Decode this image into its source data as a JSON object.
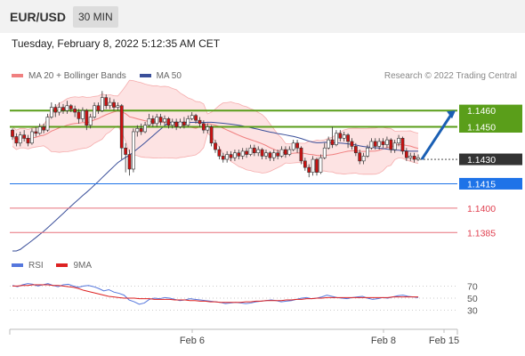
{
  "header": {
    "pair": "EUR/USD",
    "timeframe": "30 MIN"
  },
  "timestamp": "Tuesday, February 8, 2022 5:12:35 AM CET",
  "legend": {
    "bollinger": "MA 20 + Bollinger Bands",
    "ma50": "MA 50",
    "credit": "Research © 2022 Trading Central"
  },
  "rsi_legend": {
    "rsi": "RSI",
    "ma": "9MA"
  },
  "colors": {
    "up": "#ffffff",
    "down": "#cc1111",
    "bollinger": "#f08080",
    "bollinger_fill": "#fde3e3",
    "ma50": "#3a4f9a",
    "resistance": "#5a9e1a",
    "support_blue": "#1e73e8",
    "support_red": "#e8707a",
    "current": "#333333",
    "rsi": "#5577dd",
    "rsi_ma": "#dd2222",
    "arrow": "#1a5fb4"
  },
  "chart_data": [
    {
      "type": "candlestick",
      "title": "",
      "x_ticks": [
        "Feb 6",
        "Feb 8",
        "Feb 15"
      ],
      "levels": [
        {
          "label": "1.1460",
          "value": 1.146,
          "kind": "resistance"
        },
        {
          "label": "1.1450",
          "value": 1.145,
          "kind": "resistance"
        },
        {
          "label": "1.1430",
          "value": 1.143,
          "kind": "current"
        },
        {
          "label": "1.1415",
          "value": 1.1415,
          "kind": "support"
        },
        {
          "label": "1.1400",
          "value": 1.14,
          "kind": "support_minor"
        },
        {
          "label": "1.1385",
          "value": 1.1385,
          "kind": "support_minor"
        }
      ],
      "forecast_arrow": {
        "from": 1.143,
        "to": 1.146
      },
      "candles": [
        [
          1.1448,
          1.1444,
          1.1449,
          1.1442
        ],
        [
          1.1444,
          1.144,
          1.1446,
          1.1438
        ],
        [
          1.144,
          1.1445,
          1.1447,
          1.1438
        ],
        [
          1.1445,
          1.1443,
          1.1448,
          1.1441
        ],
        [
          1.1443,
          1.144,
          1.1445,
          1.1438
        ],
        [
          1.144,
          1.1447,
          1.1449,
          1.1439
        ],
        [
          1.1447,
          1.1446,
          1.145,
          1.1444
        ],
        [
          1.1446,
          1.145,
          1.1452,
          1.1445
        ],
        [
          1.145,
          1.1448,
          1.1452,
          1.1446
        ],
        [
          1.1448,
          1.1456,
          1.1458,
          1.1447
        ],
        [
          1.1456,
          1.1462,
          1.1465,
          1.1455
        ],
        [
          1.1462,
          1.1459,
          1.1464,
          1.1456
        ],
        [
          1.1459,
          1.1462,
          1.1465,
          1.1457
        ],
        [
          1.1462,
          1.146,
          1.1464,
          1.1458
        ],
        [
          1.146,
          1.1463,
          1.1466,
          1.1458
        ],
        [
          1.1463,
          1.1461,
          1.1464,
          1.1459
        ],
        [
          1.1461,
          1.1459,
          1.1463,
          1.1456
        ],
        [
          1.1459,
          1.1455,
          1.1461,
          1.1452
        ],
        [
          1.1455,
          1.146,
          1.1462,
          1.1453
        ],
        [
          1.146,
          1.1451,
          1.1461,
          1.1448
        ],
        [
          1.1451,
          1.1456,
          1.1458,
          1.1449
        ],
        [
          1.1456,
          1.1463,
          1.1465,
          1.1455
        ],
        [
          1.1463,
          1.146,
          1.1465,
          1.1458
        ],
        [
          1.146,
          1.1468,
          1.1472,
          1.1459
        ],
        [
          1.1468,
          1.1463,
          1.147,
          1.1461
        ],
        [
          1.1463,
          1.1465,
          1.1468,
          1.1461
        ],
        [
          1.1465,
          1.1462,
          1.1467,
          1.146
        ],
        [
          1.1462,
          1.1463,
          1.1465,
          1.146
        ],
        [
          1.1463,
          1.1437,
          1.1464,
          1.143
        ],
        [
          1.1437,
          1.1433,
          1.144,
          1.1422
        ],
        [
          1.1433,
          1.1424,
          1.1436,
          1.142
        ],
        [
          1.1424,
          1.1447,
          1.1449,
          1.1422
        ],
        [
          1.1447,
          1.1449,
          1.1451,
          1.1444
        ],
        [
          1.1449,
          1.1447,
          1.1452,
          1.1445
        ],
        [
          1.1447,
          1.1451,
          1.1453,
          1.1446
        ],
        [
          1.1451,
          1.1455,
          1.1458,
          1.145
        ],
        [
          1.1455,
          1.1452,
          1.1457,
          1.145
        ],
        [
          1.1452,
          1.1456,
          1.1458,
          1.145
        ],
        [
          1.1456,
          1.1453,
          1.1458,
          1.1451
        ],
        [
          1.1453,
          1.1455,
          1.1457,
          1.1451
        ],
        [
          1.1455,
          1.1451,
          1.1456,
          1.1449
        ],
        [
          1.1451,
          1.1453,
          1.1455,
          1.1449
        ],
        [
          1.1453,
          1.145,
          1.1455,
          1.1448
        ],
        [
          1.145,
          1.1453,
          1.1455,
          1.1449
        ],
        [
          1.1453,
          1.1451,
          1.1456,
          1.1449
        ],
        [
          1.1451,
          1.1455,
          1.1457,
          1.145
        ],
        [
          1.1455,
          1.1457,
          1.1459,
          1.1454
        ],
        [
          1.1457,
          1.1454,
          1.1458,
          1.1452
        ],
        [
          1.1454,
          1.1452,
          1.1456,
          1.145
        ],
        [
          1.1452,
          1.1448,
          1.1454,
          1.1446
        ],
        [
          1.1448,
          1.145,
          1.1452,
          1.1446
        ],
        [
          1.145,
          1.144,
          1.1451,
          1.1438
        ],
        [
          1.144,
          1.1436,
          1.1442,
          1.1434
        ],
        [
          1.1436,
          1.1432,
          1.1438,
          1.143
        ],
        [
          1.1432,
          1.143,
          1.1434,
          1.1428
        ],
        [
          1.143,
          1.1433,
          1.1435,
          1.1428
        ],
        [
          1.1433,
          1.1431,
          1.1435,
          1.1429
        ],
        [
          1.1431,
          1.1434,
          1.1436,
          1.1429
        ],
        [
          1.1434,
          1.1432,
          1.1436,
          1.143
        ],
        [
          1.1432,
          1.1435,
          1.1437,
          1.143
        ],
        [
          1.1435,
          1.1433,
          1.1437,
          1.1431
        ],
        [
          1.1433,
          1.1437,
          1.1439,
          1.1432
        ],
        [
          1.1437,
          1.1434,
          1.1439,
          1.1432
        ],
        [
          1.1434,
          1.1436,
          1.1438,
          1.1432
        ],
        [
          1.1436,
          1.1432,
          1.1437,
          1.143
        ],
        [
          1.1432,
          1.1434,
          1.1436,
          1.143
        ],
        [
          1.1434,
          1.1431,
          1.1435,
          1.1429
        ],
        [
          1.1431,
          1.1434,
          1.1436,
          1.1429
        ],
        [
          1.1434,
          1.1432,
          1.1436,
          1.143
        ],
        [
          1.1432,
          1.1436,
          1.1438,
          1.1431
        ],
        [
          1.1436,
          1.1433,
          1.1438,
          1.1431
        ],
        [
          1.1433,
          1.1436,
          1.1438,
          1.1432
        ],
        [
          1.1436,
          1.144,
          1.1442,
          1.1435
        ],
        [
          1.144,
          1.1437,
          1.1442,
          1.1434
        ],
        [
          1.1437,
          1.1429,
          1.1438,
          1.1427
        ],
        [
          1.1429,
          1.1425,
          1.1431,
          1.1423
        ],
        [
          1.1425,
          1.1422,
          1.1427,
          1.1419
        ],
        [
          1.1422,
          1.143,
          1.1432,
          1.142
        ],
        [
          1.143,
          1.1422,
          1.1431,
          1.142
        ],
        [
          1.1422,
          1.1431,
          1.1433,
          1.1421
        ],
        [
          1.1431,
          1.1437,
          1.144,
          1.143
        ],
        [
          1.1437,
          1.1442,
          1.1444,
          1.1436
        ],
        [
          1.1442,
          1.1439,
          1.145,
          1.1437
        ],
        [
          1.1439,
          1.1446,
          1.1448,
          1.1438
        ],
        [
          1.1446,
          1.1443,
          1.1448,
          1.1441
        ],
        [
          1.1443,
          1.1445,
          1.1447,
          1.1441
        ],
        [
          1.1445,
          1.1441,
          1.1446,
          1.1437
        ],
        [
          1.1441,
          1.1438,
          1.1443,
          1.1436
        ],
        [
          1.1438,
          1.1434,
          1.144,
          1.1432
        ],
        [
          1.1434,
          1.1429,
          1.1436,
          1.1427
        ],
        [
          1.1429,
          1.1432,
          1.1434,
          1.1427
        ],
        [
          1.1432,
          1.1437,
          1.1439,
          1.1431
        ],
        [
          1.1437,
          1.1441,
          1.1443,
          1.1436
        ],
        [
          1.1441,
          1.1438,
          1.1443,
          1.1436
        ],
        [
          1.1438,
          1.1441,
          1.1443,
          1.1436
        ],
        [
          1.1441,
          1.1439,
          1.1443,
          1.1437
        ],
        [
          1.1439,
          1.1442,
          1.1444,
          1.1437
        ],
        [
          1.1442,
          1.1436,
          1.1443,
          1.1434
        ],
        [
          1.1436,
          1.144,
          1.1442,
          1.1434
        ],
        [
          1.144,
          1.1443,
          1.1445,
          1.1438
        ],
        [
          1.1443,
          1.1435,
          1.1444,
          1.1433
        ],
        [
          1.1435,
          1.1431,
          1.1437,
          1.1429
        ],
        [
          1.1431,
          1.1432,
          1.1434,
          1.1429
        ],
        [
          1.1432,
          1.143,
          1.1434,
          1.1428
        ],
        [
          1.143,
          1.1431,
          1.1433,
          1.1429
        ]
      ]
    },
    {
      "type": "line",
      "title": "",
      "y_ticks": [
        70,
        50,
        30
      ],
      "series": [
        {
          "name": "RSI",
          "values": [
            71,
            69,
            72,
            74,
            73,
            70,
            72,
            74,
            71,
            69,
            72,
            73,
            70,
            68,
            70,
            71,
            69,
            66,
            62,
            64,
            60,
            58,
            55,
            47,
            44,
            40,
            42,
            48,
            50,
            49,
            51,
            50,
            48,
            46,
            47,
            49,
            48,
            47,
            46,
            45,
            44,
            43,
            41,
            42,
            43,
            42,
            41,
            42,
            44,
            45,
            46,
            47,
            46,
            44,
            45,
            46,
            48,
            50,
            51,
            49,
            50,
            52,
            55,
            53,
            51,
            50,
            49,
            51,
            52,
            53,
            50,
            48,
            49,
            51,
            50,
            52,
            54,
            55,
            53,
            52,
            51
          ]
        },
        {
          "name": "9MA",
          "values": [
            70,
            70,
            71,
            71,
            72,
            72,
            72,
            72,
            71,
            71,
            70,
            69,
            68,
            66,
            63,
            61,
            59,
            57,
            55,
            53,
            52,
            51,
            50,
            50,
            50,
            49,
            49,
            49,
            48,
            48,
            48,
            48,
            47,
            47,
            47,
            46,
            46,
            45,
            45,
            44,
            44,
            43,
            43,
            43,
            43,
            43,
            44,
            44,
            45,
            45,
            46,
            46,
            46,
            46,
            47,
            47,
            48,
            48,
            49,
            49,
            50,
            50,
            51,
            51,
            51,
            51,
            51,
            51,
            51,
            51,
            51,
            51,
            51,
            51,
            51,
            52,
            52,
            52,
            52,
            52,
            52
          ]
        }
      ]
    }
  ]
}
